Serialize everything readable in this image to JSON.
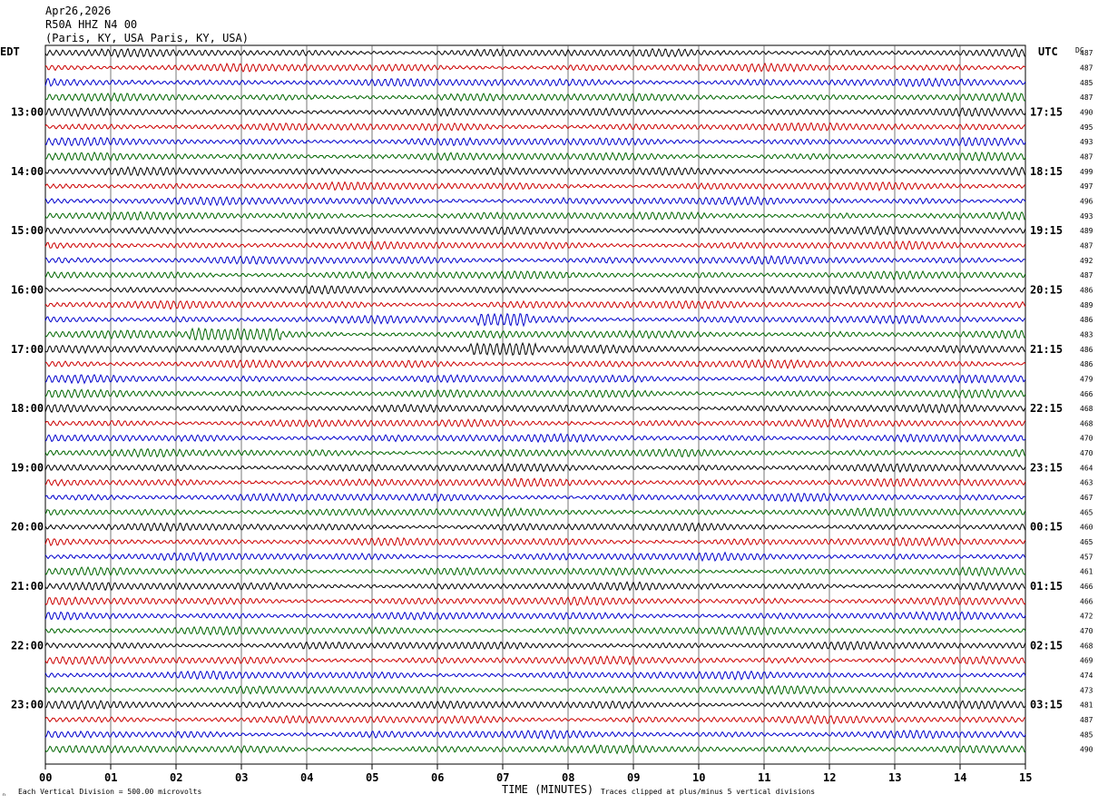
{
  "header": {
    "date": "Apr26,2026",
    "station": "R50A HHZ N4 00",
    "location": "(Paris, KY, USA Paris, KY, USA)"
  },
  "footer": {
    "scale_note": "Each Vertical Division =  500.00 microvolts",
    "clip_note": "Traces clipped at plus/minus 5 vertical divisions",
    "corner_mark": "ₙ"
  },
  "chart_data": {
    "type": "line",
    "title": "R50A HHZ N4 00",
    "xlabel": "TIME (MINUTES)",
    "ylabel_left": "EDT",
    "ylabel_right": "UTC",
    "dc_label": "DC",
    "xlim": [
      0,
      15
    ],
    "x_ticks": [
      "00",
      "01",
      "02",
      "03",
      "04",
      "05",
      "06",
      "07",
      "08",
      "09",
      "10",
      "11",
      "12",
      "13",
      "14",
      "15"
    ],
    "trace_colors": [
      "#000000",
      "#cc0000",
      "#0000cc",
      "#006600"
    ],
    "trace_minutes": 15,
    "left_hour_labels": [
      "13:00",
      "14:00",
      "15:00",
      "16:00",
      "17:00",
      "18:00",
      "19:00",
      "20:00",
      "21:00",
      "22:00",
      "23:00"
    ],
    "right_hour_labels": [
      "17:15",
      "18:15",
      "19:15",
      "20:15",
      "21:15",
      "22:15",
      "23:15",
      "00:15",
      "01:15",
      "02:15",
      "03:15"
    ],
    "dc_values": [
      487,
      487,
      485,
      487,
      490,
      495,
      493,
      487,
      499,
      497,
      496,
      493,
      489,
      487,
      492,
      487,
      486,
      489,
      486,
      483,
      486,
      486,
      479,
      466,
      468,
      468,
      470,
      470,
      464,
      463,
      467,
      465,
      460,
      465,
      457,
      461,
      466,
      466,
      472,
      470,
      468,
      469,
      474,
      473,
      481,
      487,
      485,
      490
    ],
    "events": [
      {
        "trace": 18,
        "minute_start": 6.6,
        "minute_end": 7.4
      },
      {
        "trace": 20,
        "minute_start": 6.5,
        "minute_end": 7.5
      },
      {
        "trace": 19,
        "minute_start": 2.2,
        "minute_end": 3.6
      }
    ]
  }
}
